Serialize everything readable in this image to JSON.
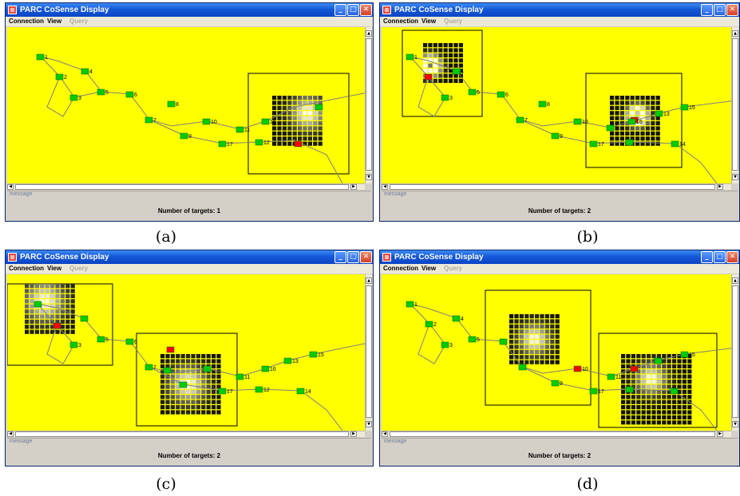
{
  "window": {
    "title": "PARC CoSense Display",
    "menu": {
      "connection": "Connection",
      "view": "View",
      "query": "Query"
    },
    "message_label": "message",
    "controls": {
      "minimize_icon": "minimize-icon",
      "maximize_icon": "maximize-icon",
      "close_icon": "close-icon"
    }
  },
  "colors": {
    "canvas": "#ffff00",
    "sensor_active": "#00cc00",
    "sensor_target": "#ff0000",
    "link_line": "#7f7f7f",
    "box_line": "#000000"
  },
  "panels": [
    {
      "caption": "(a)",
      "status": "Number of targets: 1",
      "nodes": [
        {
          "id": "1"
        },
        {
          "id": "2"
        },
        {
          "id": "3"
        },
        {
          "id": "4"
        },
        {
          "id": "5"
        },
        {
          "id": "6"
        },
        {
          "id": "7"
        },
        {
          "id": "8"
        },
        {
          "id": "9"
        },
        {
          "id": "10"
        },
        {
          "id": "11"
        },
        {
          "id": "12"
        },
        {
          "id": "16"
        },
        {
          "id": "17"
        }
      ]
    },
    {
      "caption": "(b)",
      "status": "Number of targets: 2",
      "nodes": [
        {
          "id": "1"
        },
        {
          "id": "3"
        },
        {
          "id": "4"
        },
        {
          "id": "5"
        },
        {
          "id": "6"
        },
        {
          "id": "7"
        },
        {
          "id": "8"
        },
        {
          "id": "9"
        },
        {
          "id": "10"
        },
        {
          "id": "13"
        },
        {
          "id": "14"
        },
        {
          "id": "15"
        },
        {
          "id": "16"
        },
        {
          "id": "17"
        }
      ]
    },
    {
      "caption": "(c)",
      "status": "Number of targets: 2",
      "nodes": [
        {
          "id": "3"
        },
        {
          "id": "5"
        },
        {
          "id": "6"
        },
        {
          "id": "7"
        },
        {
          "id": "11"
        },
        {
          "id": "12"
        },
        {
          "id": "13"
        },
        {
          "id": "14"
        },
        {
          "id": "15"
        },
        {
          "id": "16"
        },
        {
          "id": "17"
        }
      ]
    },
    {
      "caption": "(d)",
      "status": "Number of targets: 2",
      "nodes": [
        {
          "id": "1"
        },
        {
          "id": "2"
        },
        {
          "id": "3"
        },
        {
          "id": "4"
        },
        {
          "id": "5"
        },
        {
          "id": "9"
        },
        {
          "id": "10"
        },
        {
          "id": "11"
        },
        {
          "id": "15"
        },
        {
          "id": "17"
        }
      ]
    }
  ]
}
